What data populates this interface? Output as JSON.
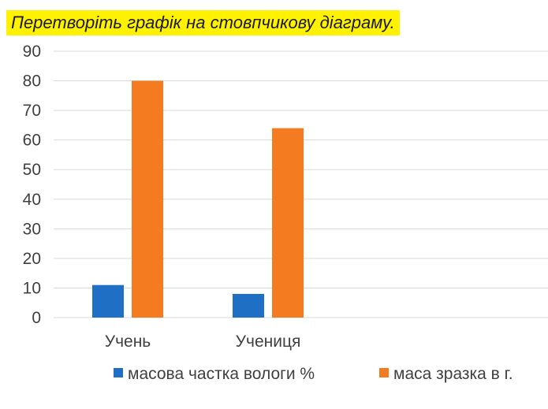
{
  "title": "Перетворіть графік на стовпчикову діаграму.",
  "chart_data": {
    "type": "bar",
    "categories": [
      "Учень",
      "Учениця"
    ],
    "series": [
      {
        "name": "масова частка вологи %",
        "values": [
          11,
          8
        ],
        "color": "#1f6fc5"
      },
      {
        "name": "маса зразка в г.",
        "values": [
          80,
          64
        ],
        "color": "#f47b20"
      }
    ],
    "ylim": [
      0,
      90
    ],
    "yticks": [
      0,
      10,
      20,
      30,
      40,
      50,
      60,
      70,
      80,
      90
    ],
    "grid": true,
    "legend_position": "bottom"
  }
}
